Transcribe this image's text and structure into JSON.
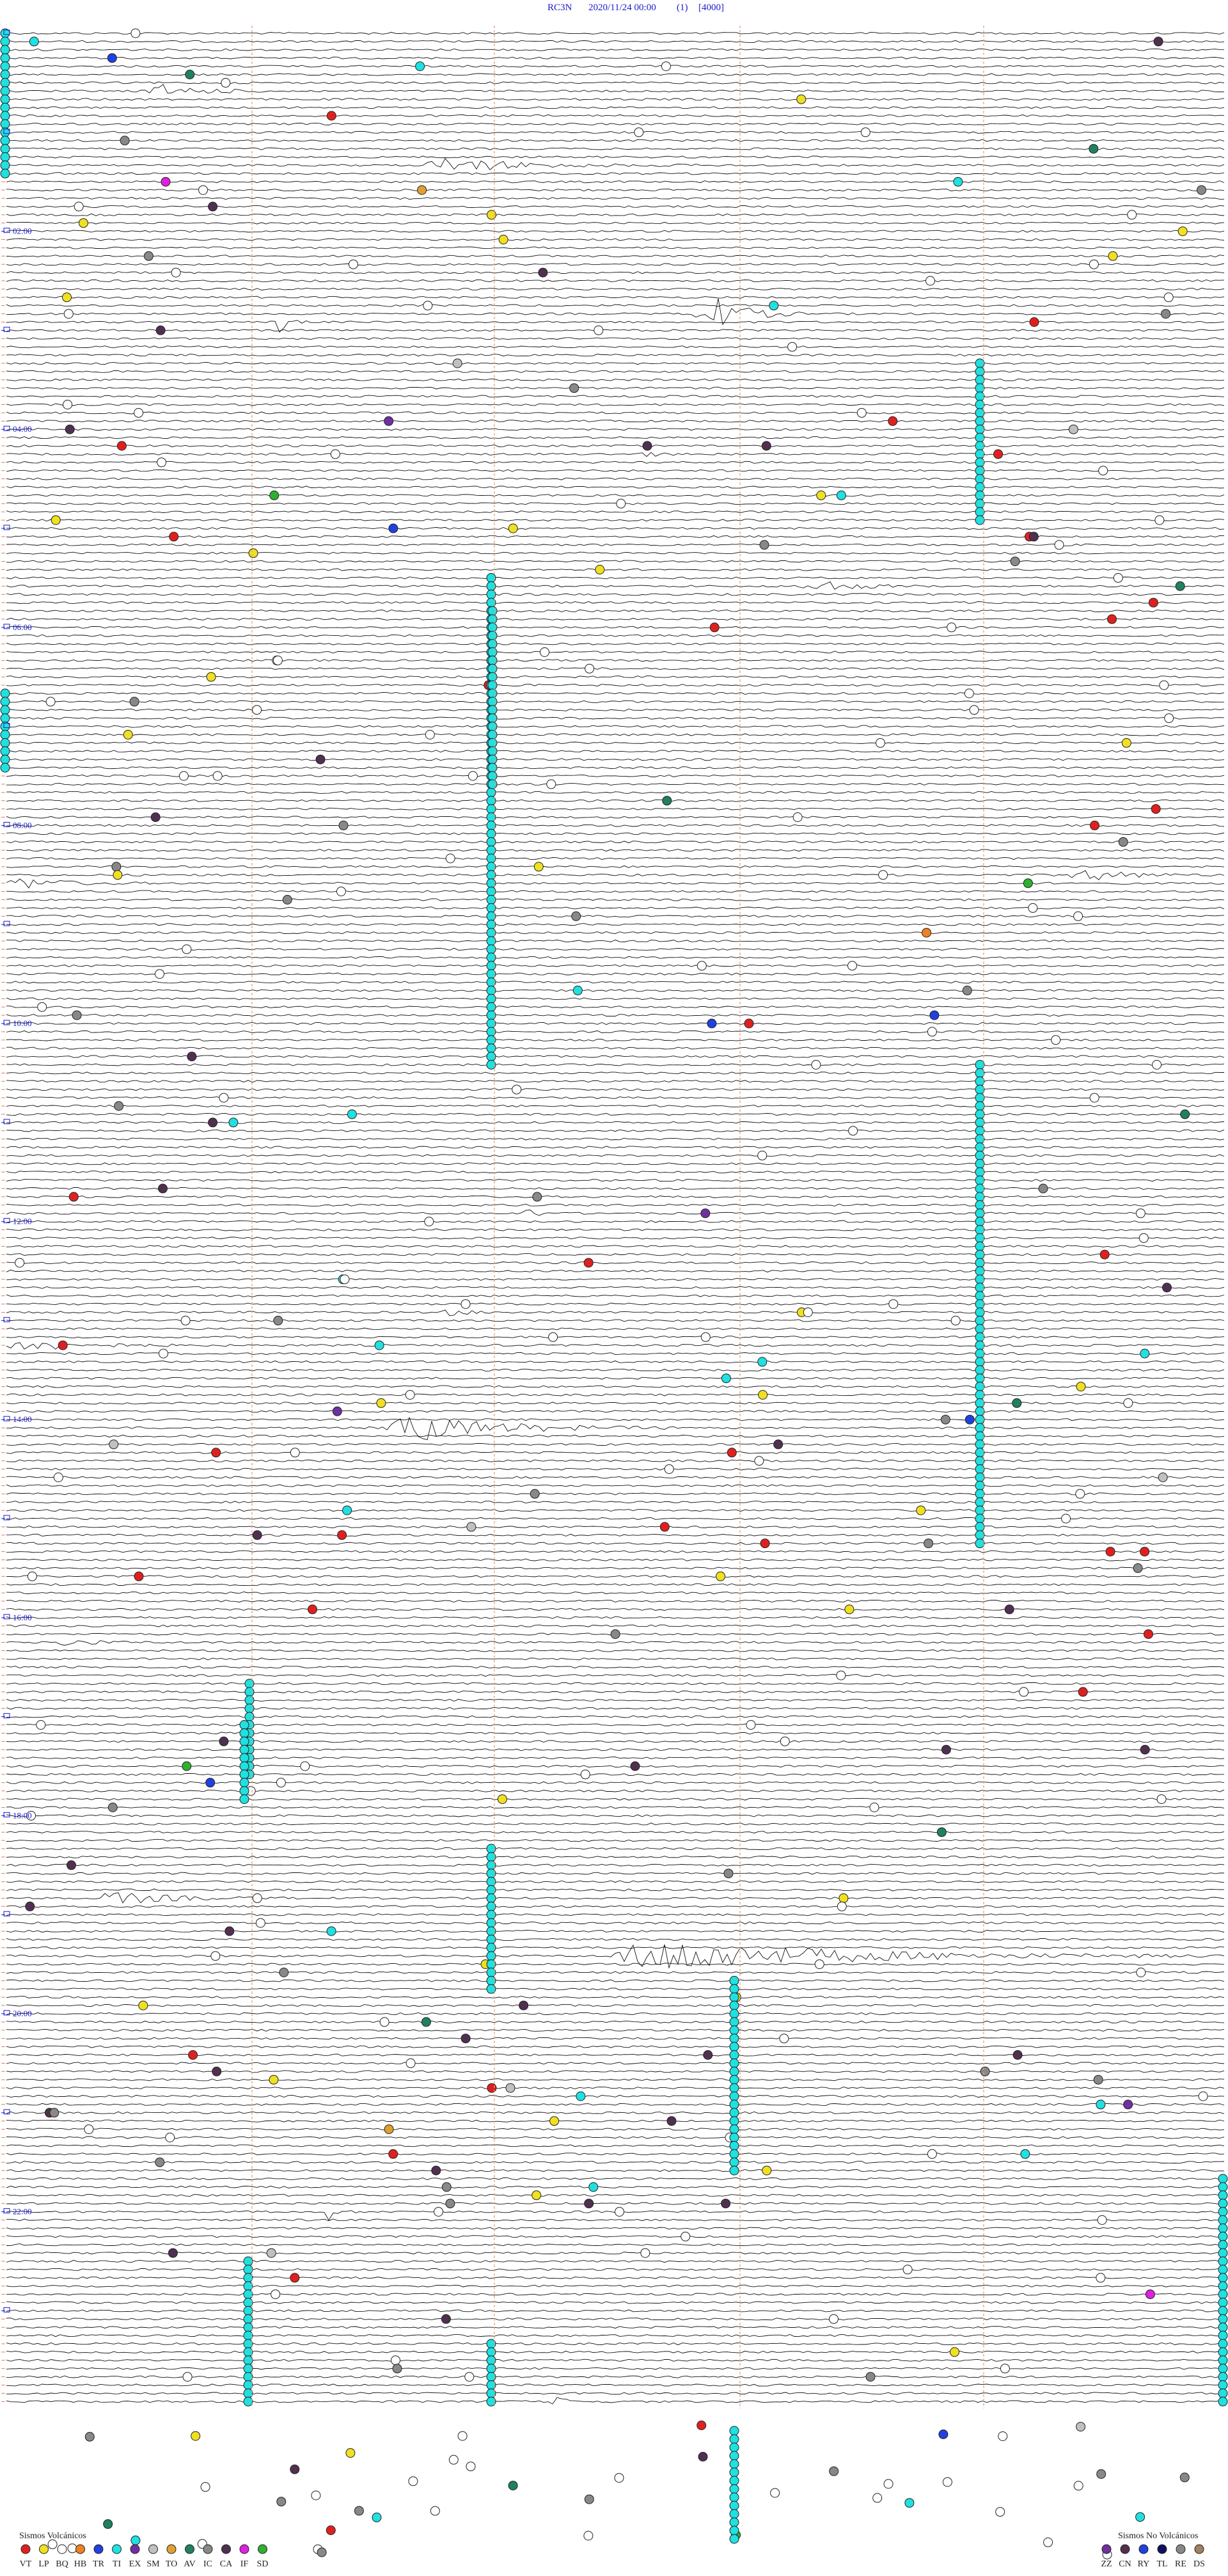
{
  "header": {
    "station": "RC3N",
    "datetime": "2020/11/24 00:00",
    "channel": "(1)",
    "scale": "[4000]"
  },
  "time_labels": [
    "02:00",
    "04:00",
    "06:00",
    "08:00",
    "10:00",
    "12:00",
    "14:00",
    "16:00",
    "18:00",
    "20:00",
    "22:00"
  ],
  "legend_volcanic": {
    "title": "Sismos Volcánicos",
    "codes": [
      "VT",
      "LP",
      "BQ",
      "HB",
      "TR",
      "TI",
      "EX",
      "SM",
      "TO",
      "AV",
      "IC",
      "CA",
      "IF",
      "SD"
    ]
  },
  "legend_non_volcanic": {
    "title": "Sismos No Volcánicos",
    "codes": [
      "ZZ",
      "CN",
      "RY",
      "TL",
      "RE",
      "DS"
    ]
  }
}
